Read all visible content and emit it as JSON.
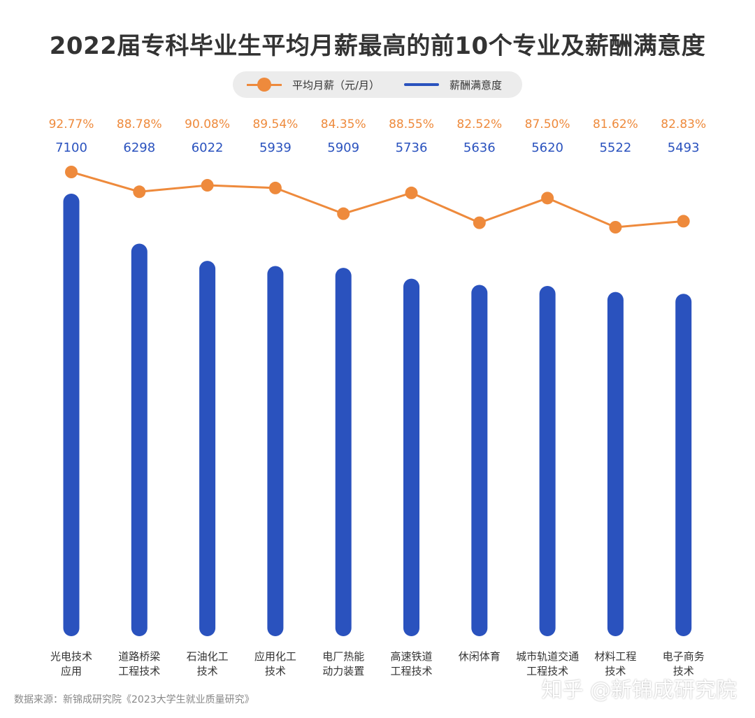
{
  "title": "2022届专科毕业生平均月薪最高的前10个专业及薪酬满意度",
  "legend": {
    "salary_label": "平均月薪（元/月）",
    "satisfaction_label": "薪酬满意度"
  },
  "source": "数据来源：新锦成研究院《2023大学生就业质量研究》",
  "watermark": "知乎 @新锦成研究院",
  "colors": {
    "salary_bar": "#2a52be",
    "satisfaction_line": "#ee8a3c",
    "title": "#333333"
  },
  "chart_data": {
    "type": "bar",
    "categories": [
      "光电技术应用",
      "道路桥梁工程技术",
      "石油化工技术",
      "应用化工技术",
      "电厂热能动力装置",
      "高速铁道工程技术",
      "休闲体育",
      "城市轨道交通工程技术",
      "材料工程技术",
      "电子商务技术"
    ],
    "category_lines": [
      [
        "光电技术",
        "应用"
      ],
      [
        "道路桥梁",
        "工程技术"
      ],
      [
        "石油化工",
        "技术"
      ],
      [
        "应用化工",
        "技术"
      ],
      [
        "电厂热能",
        "动力装置"
      ],
      [
        "高速铁道",
        "工程技术"
      ],
      [
        "休闲体育"
      ],
      [
        "城市轨道交通",
        "工程技术"
      ],
      [
        "材料工程",
        "技术"
      ],
      [
        "电子商务",
        "技术"
      ]
    ],
    "series": [
      {
        "name": "平均月薪（元/月）",
        "type": "bar",
        "values": [
          7100,
          6298,
          6022,
          5939,
          5909,
          5736,
          5636,
          5620,
          5522,
          5493
        ],
        "labels": [
          "7100",
          "6298",
          "6022",
          "5939",
          "5909",
          "5736",
          "5636",
          "5620",
          "5522",
          "5493"
        ]
      },
      {
        "name": "薪酬满意度",
        "type": "line",
        "values": [
          92.77,
          88.78,
          90.08,
          89.54,
          84.35,
          88.55,
          82.52,
          87.5,
          81.62,
          82.83
        ],
        "labels": [
          "92.77%",
          "88.78%",
          "90.08%",
          "89.54%",
          "84.35%",
          "88.55%",
          "82.52%",
          "87.50%",
          "81.62%",
          "82.83%"
        ]
      }
    ]
  }
}
